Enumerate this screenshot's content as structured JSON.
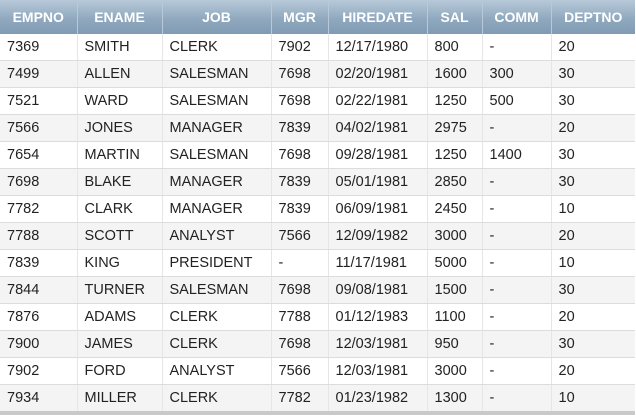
{
  "table": {
    "columns": [
      "EMPNO",
      "ENAME",
      "JOB",
      "MGR",
      "HIREDATE",
      "SAL",
      "COMM",
      "DEPTNO"
    ],
    "rows": [
      [
        "7369",
        "SMITH",
        "CLERK",
        "7902",
        "12/17/1980",
        "800",
        "-",
        "20"
      ],
      [
        "7499",
        "ALLEN",
        "SALESMAN",
        "7698",
        "02/20/1981",
        "1600",
        "300",
        "30"
      ],
      [
        "7521",
        "WARD",
        "SALESMAN",
        "7698",
        "02/22/1981",
        "1250",
        "500",
        "30"
      ],
      [
        "7566",
        "JONES",
        "MANAGER",
        "7839",
        "04/02/1981",
        "2975",
        "-",
        "20"
      ],
      [
        "7654",
        "MARTIN",
        "SALESMAN",
        "7698",
        "09/28/1981",
        "1250",
        "1400",
        "30"
      ],
      [
        "7698",
        "BLAKE",
        "MANAGER",
        "7839",
        "05/01/1981",
        "2850",
        "-",
        "30"
      ],
      [
        "7782",
        "CLARK",
        "MANAGER",
        "7839",
        "06/09/1981",
        "2450",
        "-",
        "10"
      ],
      [
        "7788",
        "SCOTT",
        "ANALYST",
        "7566",
        "12/09/1982",
        "3000",
        "-",
        "20"
      ],
      [
        "7839",
        "KING",
        "PRESIDENT",
        "-",
        "11/17/1981",
        "5000",
        "-",
        "10"
      ],
      [
        "7844",
        "TURNER",
        "SALESMAN",
        "7698",
        "09/08/1981",
        "1500",
        "-",
        "30"
      ],
      [
        "7876",
        "ADAMS",
        "CLERK",
        "7788",
        "01/12/1983",
        "1100",
        "-",
        "20"
      ],
      [
        "7900",
        "JAMES",
        "CLERK",
        "7698",
        "12/03/1981",
        "950",
        "-",
        "30"
      ],
      [
        "7902",
        "FORD",
        "ANALYST",
        "7566",
        "12/03/1981",
        "3000",
        "-",
        "20"
      ],
      [
        "7934",
        "MILLER",
        "CLERK",
        "7782",
        "01/23/1982",
        "1300",
        "-",
        "10"
      ]
    ]
  },
  "colors": {
    "header_top": "#b7c9d9",
    "header_bottom": "#7f9bb3",
    "row_alt": "#f4f4f4"
  }
}
